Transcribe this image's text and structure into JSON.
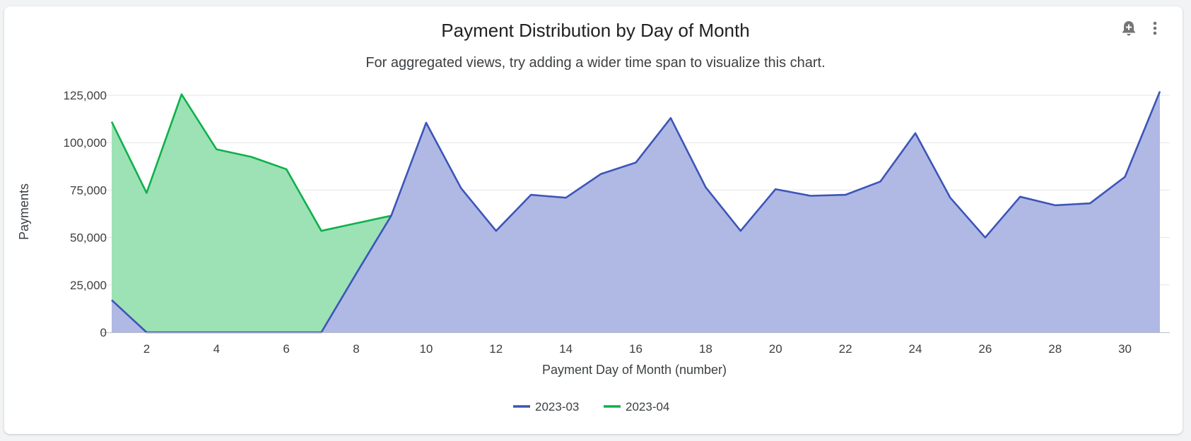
{
  "header": {
    "title": "Payment Distribution by Day of Month",
    "subtitle": "For aggregated views, try adding a wider time span to visualize this chart.",
    "add_alert_icon": "add-alert-icon",
    "more_icon": "more-vert-icon"
  },
  "chart_data": {
    "type": "area",
    "xlabel": "Payment Day of Month (number)",
    "ylabel": "Payments",
    "xlim": [
      1,
      31
    ],
    "ylim": [
      0,
      125000
    ],
    "x_ticks": [
      2,
      4,
      6,
      8,
      10,
      12,
      14,
      16,
      18,
      20,
      22,
      24,
      26,
      28,
      30
    ],
    "y_ticks": [
      0,
      25000,
      50000,
      75000,
      100000,
      125000
    ],
    "y_tick_labels": [
      "0",
      "25,000",
      "50,000",
      "75,000",
      "100,000",
      "125,000"
    ],
    "grid": true,
    "legend_position": "bottom",
    "series": [
      {
        "name": "2023-04",
        "color": "#0fb04b",
        "fill": "#9ce2b5",
        "x": [
          1,
          2,
          3,
          4,
          5,
          6,
          7,
          8,
          9
        ],
        "values": [
          111000,
          73500,
          125500,
          96500,
          92500,
          86000,
          53500,
          57500,
          61500
        ]
      },
      {
        "name": "2023-03",
        "color": "#3c55b8",
        "fill": "#b0b9e4",
        "x": [
          1,
          2,
          3,
          4,
          5,
          6,
          7,
          8,
          9,
          10,
          11,
          12,
          13,
          14,
          15,
          16,
          17,
          18,
          19,
          20,
          21,
          22,
          23,
          24,
          25,
          26,
          27,
          28,
          29,
          30,
          31
        ],
        "values": [
          17000,
          0,
          0,
          0,
          0,
          0,
          0,
          31000,
          61500,
          110500,
          76000,
          53500,
          72500,
          71000,
          83500,
          89500,
          113000,
          76500,
          53500,
          75500,
          72000,
          72500,
          79500,
          105000,
          71000,
          50000,
          71500,
          67000,
          68000,
          82000,
          127000
        ]
      }
    ]
  }
}
